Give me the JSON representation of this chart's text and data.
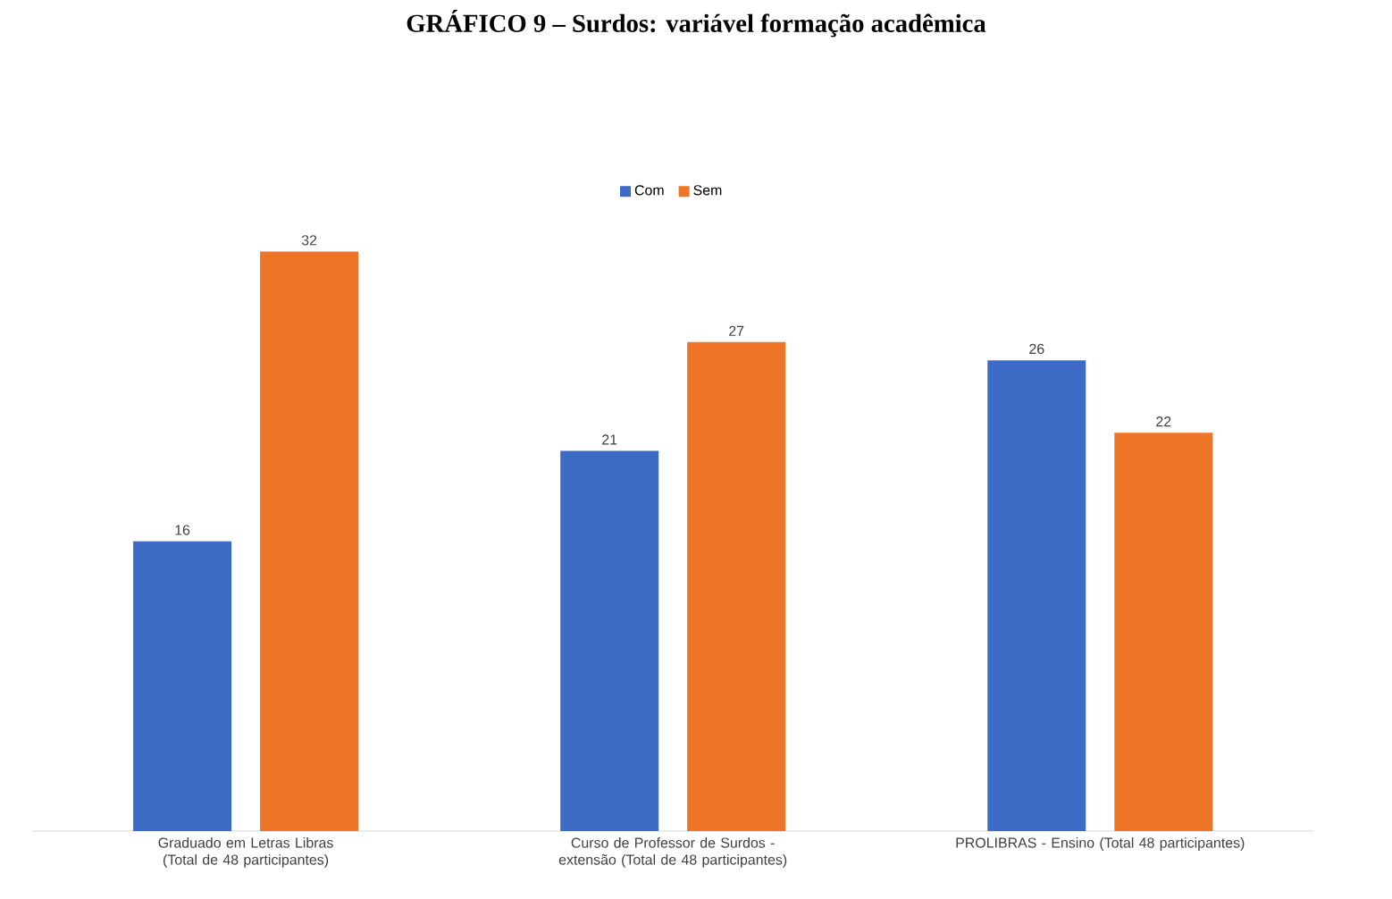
{
  "chart_data": {
    "type": "bar",
    "title": "GRÁFICO 9 – Surdos: variável formação acadêmica",
    "categories": [
      "Graduado em Letras Libras (Total de 48 participantes)",
      "Curso de Professor de Surdos - extensão (Total de 48 participantes)",
      "PROLIBRAS - Ensino (Total 48 participantes)"
    ],
    "series": [
      {
        "name": "Com",
        "color": "#3c6cc6",
        "values": [
          16,
          21,
          26
        ]
      },
      {
        "name": "Sem",
        "color": "#ee7428",
        "values": [
          32,
          27,
          22
        ]
      }
    ],
    "data_labels": true,
    "legend": "top"
  }
}
